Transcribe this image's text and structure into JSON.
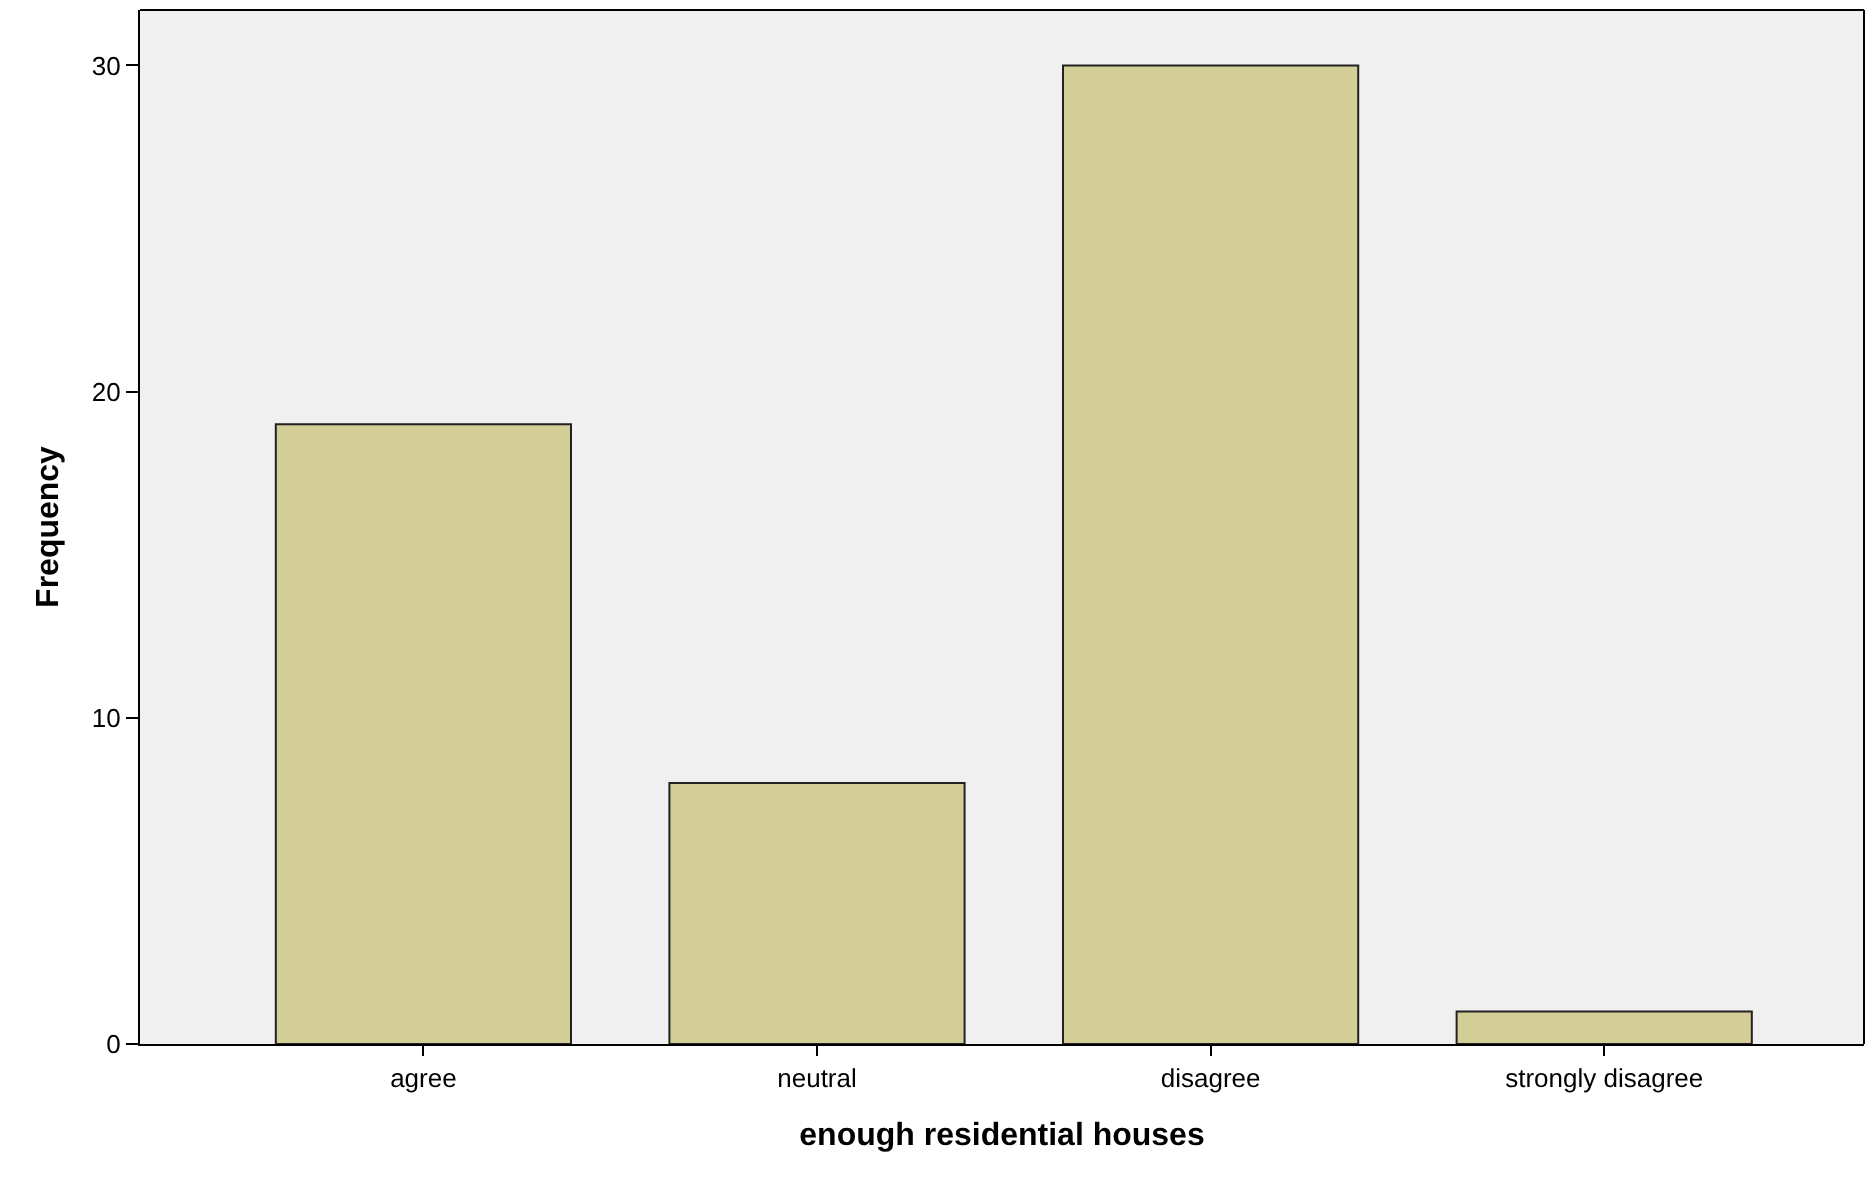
{
  "chart_data": {
    "type": "bar",
    "xlabel": "enough residential houses",
    "ylabel": "Frequency",
    "categories": [
      "agree",
      "neutral",
      "disagree",
      "strongly disagree"
    ],
    "values": [
      19,
      8,
      30,
      1
    ],
    "color": "#d3ce97",
    "ylim": [
      0,
      31.7
    ],
    "yticks": [
      0,
      10,
      20,
      30
    ],
    "grid": false
  }
}
